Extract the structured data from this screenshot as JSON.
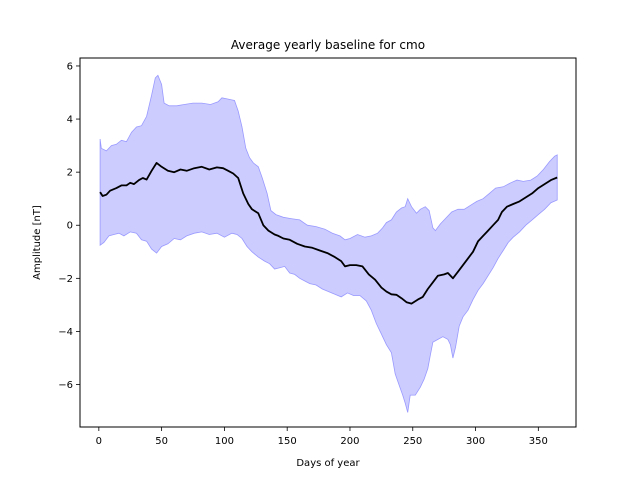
{
  "chart_data": {
    "type": "line",
    "title": "Average yearly baseline for cmo",
    "xlabel": "Days of year",
    "ylabel": "Amplitude [nT]",
    "xlim": [
      -15,
      380
    ],
    "ylim": [
      -7.6,
      6.3
    ],
    "xticks": [
      0,
      50,
      100,
      150,
      200,
      250,
      300,
      350
    ],
    "yticks": [
      6,
      4,
      2,
      0,
      -2,
      -4,
      -6
    ],
    "ytick_labels": [
      "6",
      "4",
      "2",
      "0",
      "−2",
      "−4",
      "−6"
    ],
    "grid": false,
    "legend": "none",
    "series": [
      {
        "role": "mean",
        "color": "#000000",
        "points": [
          [
            1,
            1.25
          ],
          [
            3,
            1.1
          ],
          [
            6,
            1.15
          ],
          [
            9,
            1.3
          ],
          [
            14,
            1.4
          ],
          [
            18,
            1.5
          ],
          [
            22,
            1.5
          ],
          [
            25,
            1.6
          ],
          [
            28,
            1.55
          ],
          [
            32,
            1.7
          ],
          [
            35,
            1.78
          ],
          [
            38,
            1.72
          ],
          [
            42,
            2.05
          ],
          [
            46,
            2.35
          ],
          [
            50,
            2.2
          ],
          [
            55,
            2.05
          ],
          [
            60,
            2.0
          ],
          [
            65,
            2.1
          ],
          [
            70,
            2.05
          ],
          [
            76,
            2.15
          ],
          [
            82,
            2.2
          ],
          [
            88,
            2.1
          ],
          [
            94,
            2.18
          ],
          [
            99,
            2.15
          ],
          [
            103,
            2.05
          ],
          [
            107,
            1.95
          ],
          [
            111,
            1.78
          ],
          [
            115,
            1.2
          ],
          [
            119,
            0.8
          ],
          [
            122,
            0.6
          ],
          [
            127,
            0.45
          ],
          [
            131,
            0.0
          ],
          [
            135,
            -0.2
          ],
          [
            140,
            -0.35
          ],
          [
            143,
            -0.4
          ],
          [
            147,
            -0.5
          ],
          [
            152,
            -0.55
          ],
          [
            158,
            -0.7
          ],
          [
            164,
            -0.8
          ],
          [
            170,
            -0.85
          ],
          [
            176,
            -0.95
          ],
          [
            182,
            -1.05
          ],
          [
            188,
            -1.2
          ],
          [
            193,
            -1.35
          ],
          [
            196,
            -1.55
          ],
          [
            200,
            -1.5
          ],
          [
            205,
            -1.5
          ],
          [
            210,
            -1.55
          ],
          [
            215,
            -1.85
          ],
          [
            220,
            -2.05
          ],
          [
            225,
            -2.35
          ],
          [
            229,
            -2.5
          ],
          [
            233,
            -2.6
          ],
          [
            237,
            -2.62
          ],
          [
            241,
            -2.75
          ],
          [
            245,
            -2.9
          ],
          [
            249,
            -2.95
          ],
          [
            254,
            -2.8
          ],
          [
            258,
            -2.7
          ],
          [
            262,
            -2.4
          ],
          [
            266,
            -2.15
          ],
          [
            270,
            -1.9
          ],
          [
            275,
            -1.85
          ],
          [
            278,
            -1.8
          ],
          [
            282,
            -2.0
          ],
          [
            286,
            -1.75
          ],
          [
            290,
            -1.5
          ],
          [
            294,
            -1.25
          ],
          [
            298,
            -1.0
          ],
          [
            302,
            -0.6
          ],
          [
            306,
            -0.4
          ],
          [
            310,
            -0.2
          ],
          [
            314,
            0.0
          ],
          [
            318,
            0.2
          ],
          [
            321,
            0.5
          ],
          [
            325,
            0.7
          ],
          [
            330,
            0.8
          ],
          [
            335,
            0.9
          ],
          [
            340,
            1.05
          ],
          [
            345,
            1.2
          ],
          [
            350,
            1.4
          ],
          [
            355,
            1.55
          ],
          [
            360,
            1.7
          ],
          [
            365,
            1.8
          ]
        ]
      },
      {
        "role": "upper",
        "color": "#0000ff",
        "points": [
          [
            1,
            3.25
          ],
          [
            2,
            2.9
          ],
          [
            6,
            2.8
          ],
          [
            10,
            3.0
          ],
          [
            14,
            3.05
          ],
          [
            18,
            3.2
          ],
          [
            22,
            3.15
          ],
          [
            26,
            3.5
          ],
          [
            30,
            3.7
          ],
          [
            34,
            3.75
          ],
          [
            38,
            4.1
          ],
          [
            42,
            4.9
          ],
          [
            45,
            5.55
          ],
          [
            47,
            5.65
          ],
          [
            50,
            5.3
          ],
          [
            52,
            4.6
          ],
          [
            56,
            4.5
          ],
          [
            62,
            4.5
          ],
          [
            68,
            4.55
          ],
          [
            75,
            4.6
          ],
          [
            82,
            4.6
          ],
          [
            89,
            4.55
          ],
          [
            95,
            4.65
          ],
          [
            98,
            4.8
          ],
          [
            103,
            4.75
          ],
          [
            108,
            4.7
          ],
          [
            111,
            4.3
          ],
          [
            114,
            3.7
          ],
          [
            117,
            2.9
          ],
          [
            120,
            2.55
          ],
          [
            123,
            2.35
          ],
          [
            127,
            2.2
          ],
          [
            130,
            1.8
          ],
          [
            134,
            1.2
          ],
          [
            137,
            0.55
          ],
          [
            141,
            0.4
          ],
          [
            147,
            0.3
          ],
          [
            153,
            0.25
          ],
          [
            160,
            0.2
          ],
          [
            166,
            0.0
          ],
          [
            173,
            -0.05
          ],
          [
            180,
            -0.15
          ],
          [
            186,
            -0.3
          ],
          [
            192,
            -0.4
          ],
          [
            196,
            -0.55
          ],
          [
            200,
            -0.5
          ],
          [
            206,
            -0.35
          ],
          [
            212,
            -0.45
          ],
          [
            217,
            -0.4
          ],
          [
            222,
            -0.3
          ],
          [
            226,
            -0.1
          ],
          [
            229,
            0.1
          ],
          [
            233,
            0.2
          ],
          [
            237,
            0.5
          ],
          [
            241,
            0.65
          ],
          [
            244,
            0.7
          ],
          [
            246,
            1.0
          ],
          [
            249,
            0.7
          ],
          [
            253,
            0.45
          ],
          [
            256,
            0.6
          ],
          [
            260,
            0.7
          ],
          [
            263,
            0.55
          ],
          [
            266,
            -0.1
          ],
          [
            268,
            -0.2
          ],
          [
            272,
            0.05
          ],
          [
            276,
            0.25
          ],
          [
            281,
            0.5
          ],
          [
            286,
            0.6
          ],
          [
            291,
            0.6
          ],
          [
            296,
            0.75
          ],
          [
            301,
            0.9
          ],
          [
            306,
            1.0
          ],
          [
            311,
            1.2
          ],
          [
            316,
            1.4
          ],
          [
            322,
            1.45
          ],
          [
            328,
            1.6
          ],
          [
            333,
            1.7
          ],
          [
            338,
            1.65
          ],
          [
            344,
            1.7
          ],
          [
            349,
            1.85
          ],
          [
            354,
            2.1
          ],
          [
            359,
            2.4
          ],
          [
            363,
            2.6
          ],
          [
            365,
            2.65
          ]
        ]
      },
      {
        "role": "lower",
        "color": "#0000ff",
        "points": [
          [
            1,
            -0.75
          ],
          [
            4,
            -0.65
          ],
          [
            8,
            -0.4
          ],
          [
            12,
            -0.35
          ],
          [
            16,
            -0.3
          ],
          [
            20,
            -0.4
          ],
          [
            25,
            -0.25
          ],
          [
            30,
            -0.3
          ],
          [
            34,
            -0.55
          ],
          [
            38,
            -0.6
          ],
          [
            42,
            -0.9
          ],
          [
            46,
            -1.05
          ],
          [
            50,
            -0.8
          ],
          [
            55,
            -0.7
          ],
          [
            60,
            -0.5
          ],
          [
            65,
            -0.55
          ],
          [
            70,
            -0.4
          ],
          [
            76,
            -0.3
          ],
          [
            82,
            -0.25
          ],
          [
            88,
            -0.35
          ],
          [
            94,
            -0.3
          ],
          [
            100,
            -0.45
          ],
          [
            106,
            -0.3
          ],
          [
            110,
            -0.35
          ],
          [
            114,
            -0.5
          ],
          [
            118,
            -0.8
          ],
          [
            122,
            -1.0
          ],
          [
            127,
            -1.2
          ],
          [
            132,
            -1.35
          ],
          [
            136,
            -1.45
          ],
          [
            140,
            -1.65
          ],
          [
            144,
            -1.6
          ],
          [
            148,
            -1.55
          ],
          [
            152,
            -1.8
          ],
          [
            156,
            -1.85
          ],
          [
            160,
            -2.0
          ],
          [
            164,
            -2.1
          ],
          [
            168,
            -2.2
          ],
          [
            173,
            -2.25
          ],
          [
            178,
            -2.4
          ],
          [
            183,
            -2.5
          ],
          [
            188,
            -2.6
          ],
          [
            193,
            -2.7
          ],
          [
            198,
            -2.55
          ],
          [
            203,
            -2.65
          ],
          [
            208,
            -2.65
          ],
          [
            213,
            -2.85
          ],
          [
            217,
            -3.2
          ],
          [
            221,
            -3.7
          ],
          [
            225,
            -4.1
          ],
          [
            229,
            -4.5
          ],
          [
            233,
            -4.8
          ],
          [
            236,
            -5.6
          ],
          [
            239,
            -6.0
          ],
          [
            242,
            -6.4
          ],
          [
            244,
            -6.7
          ],
          [
            246,
            -7.05
          ],
          [
            248,
            -6.4
          ],
          [
            252,
            -6.4
          ],
          [
            256,
            -6.1
          ],
          [
            259,
            -5.8
          ],
          [
            262,
            -5.4
          ],
          [
            264,
            -4.9
          ],
          [
            266,
            -4.4
          ],
          [
            270,
            -4.3
          ],
          [
            274,
            -4.2
          ],
          [
            278,
            -4.3
          ],
          [
            280,
            -4.5
          ],
          [
            282,
            -5.0
          ],
          [
            284,
            -4.6
          ],
          [
            287,
            -3.8
          ],
          [
            290,
            -3.45
          ],
          [
            294,
            -3.2
          ],
          [
            298,
            -2.8
          ],
          [
            302,
            -2.45
          ],
          [
            306,
            -2.2
          ],
          [
            310,
            -1.9
          ],
          [
            314,
            -1.6
          ],
          [
            318,
            -1.25
          ],
          [
            322,
            -0.95
          ],
          [
            326,
            -0.65
          ],
          [
            330,
            -0.45
          ],
          [
            335,
            -0.25
          ],
          [
            340,
            0.0
          ],
          [
            345,
            0.2
          ],
          [
            350,
            0.4
          ],
          [
            355,
            0.6
          ],
          [
            360,
            0.85
          ],
          [
            365,
            0.95
          ]
        ]
      }
    ],
    "band_fill": "#ccccff",
    "band_edge": "#9999ff"
  }
}
